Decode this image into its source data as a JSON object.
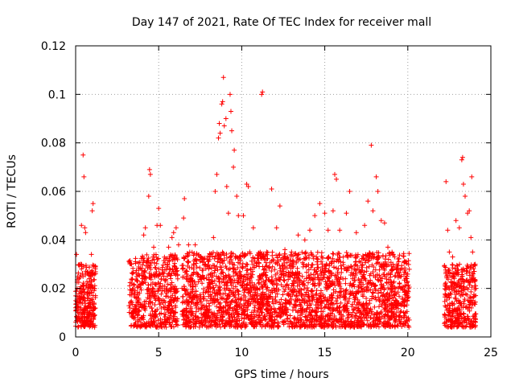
{
  "chart_data": {
    "type": "scatter",
    "title": "Day 147 of 2021, Rate Of TEC Index for receiver mall",
    "xlabel": "GPS time / hours",
    "ylabel": "ROTI / TECUs",
    "xlim": [
      0,
      25
    ],
    "ylim": [
      0,
      0.12
    ],
    "x_ticks": [
      0,
      5,
      10,
      15,
      20,
      25
    ],
    "x_tick_labels": [
      "0",
      "5",
      "10",
      "15",
      "20",
      "25"
    ],
    "y_ticks": [
      0,
      0.02,
      0.04,
      0.06,
      0.08,
      0.1,
      0.12
    ],
    "y_tick_labels": [
      "0",
      "0.02",
      "0.04",
      "0.06",
      "0.08",
      "0.1",
      "0.12"
    ],
    "grid": true,
    "marker": "+",
    "color": "#ff0000",
    "series": [
      {
        "points": [
          [
            0.05,
            0.034
          ],
          [
            0.1,
            0.012
          ],
          [
            0.2,
            0.024
          ],
          [
            0.3,
            0.03
          ],
          [
            0.35,
            0.046
          ],
          [
            0.45,
            0.075
          ],
          [
            0.5,
            0.066
          ],
          [
            0.55,
            0.045
          ],
          [
            0.6,
            0.043
          ],
          [
            0.7,
            0.018
          ],
          [
            0.8,
            0.01
          ],
          [
            0.9,
            0.02
          ],
          [
            0.95,
            0.034
          ],
          [
            1.05,
            0.055
          ],
          [
            1.0,
            0.052
          ],
          [
            1.1,
            0.012
          ],
          [
            3.3,
            0.014
          ],
          [
            3.6,
            0.031
          ],
          [
            3.8,
            0.028
          ],
          [
            4.1,
            0.042
          ],
          [
            4.2,
            0.045
          ],
          [
            4.4,
            0.058
          ],
          [
            4.45,
            0.069
          ],
          [
            4.5,
            0.067
          ],
          [
            4.7,
            0.037
          ],
          [
            4.9,
            0.046
          ],
          [
            5.0,
            0.053
          ],
          [
            5.1,
            0.046
          ],
          [
            5.3,
            0.025
          ],
          [
            5.6,
            0.037
          ],
          [
            5.8,
            0.041
          ],
          [
            5.9,
            0.043
          ],
          [
            6.05,
            0.045
          ],
          [
            6.2,
            0.038
          ],
          [
            6.5,
            0.049
          ],
          [
            6.55,
            0.057
          ],
          [
            6.8,
            0.038
          ],
          [
            7.2,
            0.038
          ],
          [
            7.5,
            0.032
          ],
          [
            7.8,
            0.03
          ],
          [
            8.1,
            0.034
          ],
          [
            8.3,
            0.041
          ],
          [
            8.4,
            0.06
          ],
          [
            8.5,
            0.067
          ],
          [
            8.6,
            0.082
          ],
          [
            8.65,
            0.088
          ],
          [
            8.7,
            0.084
          ],
          [
            8.8,
            0.096
          ],
          [
            8.85,
            0.097
          ],
          [
            8.9,
            0.107
          ],
          [
            8.95,
            0.087
          ],
          [
            9.05,
            0.09
          ],
          [
            9.1,
            0.062
          ],
          [
            9.2,
            0.051
          ],
          [
            9.3,
            0.1
          ],
          [
            9.35,
            0.093
          ],
          [
            9.4,
            0.085
          ],
          [
            9.5,
            0.07
          ],
          [
            9.55,
            0.077
          ],
          [
            9.7,
            0.058
          ],
          [
            9.8,
            0.05
          ],
          [
            10.1,
            0.05
          ],
          [
            10.3,
            0.063
          ],
          [
            10.4,
            0.062
          ],
          [
            10.7,
            0.045
          ],
          [
            11.2,
            0.1
          ],
          [
            11.25,
            0.101
          ],
          [
            11.5,
            0.035
          ],
          [
            11.8,
            0.061
          ],
          [
            12.1,
            0.045
          ],
          [
            12.3,
            0.054
          ],
          [
            12.6,
            0.036
          ],
          [
            13.0,
            0.035
          ],
          [
            13.4,
            0.042
          ],
          [
            13.8,
            0.04
          ],
          [
            14.1,
            0.044
          ],
          [
            14.4,
            0.05
          ],
          [
            14.7,
            0.055
          ],
          [
            15.0,
            0.051
          ],
          [
            15.2,
            0.044
          ],
          [
            15.5,
            0.052
          ],
          [
            15.6,
            0.067
          ],
          [
            15.7,
            0.065
          ],
          [
            15.9,
            0.044
          ],
          [
            16.3,
            0.051
          ],
          [
            16.5,
            0.06
          ],
          [
            16.9,
            0.043
          ],
          [
            17.4,
            0.046
          ],
          [
            17.6,
            0.056
          ],
          [
            17.8,
            0.079
          ],
          [
            17.9,
            0.052
          ],
          [
            18.1,
            0.066
          ],
          [
            18.2,
            0.06
          ],
          [
            18.4,
            0.048
          ],
          [
            18.6,
            0.047
          ],
          [
            18.8,
            0.037
          ],
          [
            19.2,
            0.033
          ],
          [
            19.6,
            0.025
          ],
          [
            19.9,
            0.031
          ],
          [
            22.3,
            0.064
          ],
          [
            22.4,
            0.044
          ],
          [
            22.5,
            0.035
          ],
          [
            22.7,
            0.033
          ],
          [
            22.9,
            0.048
          ],
          [
            23.1,
            0.045
          ],
          [
            23.25,
            0.073
          ],
          [
            23.3,
            0.074
          ],
          [
            23.35,
            0.063
          ],
          [
            23.45,
            0.058
          ],
          [
            23.6,
            0.051
          ],
          [
            23.7,
            0.052
          ],
          [
            23.8,
            0.041
          ],
          [
            23.85,
            0.066
          ],
          [
            23.9,
            0.035
          ],
          [
            24.0,
            0.027
          ]
        ]
      }
    ],
    "dense_bands": [
      {
        "x": [
          0.0,
          1.2
        ],
        "y_base": [
          0.004,
          0.03
        ],
        "count": 260
      },
      {
        "x": [
          3.2,
          6.15
        ],
        "y_base": [
          0.004,
          0.034
        ],
        "count": 520
      },
      {
        "x": [
          6.4,
          20.1
        ],
        "y_base": [
          0.004,
          0.035
        ],
        "count": 2600
      },
      {
        "x": [
          22.2,
          24.1
        ],
        "y_base": [
          0.004,
          0.03
        ],
        "count": 360
      }
    ]
  }
}
